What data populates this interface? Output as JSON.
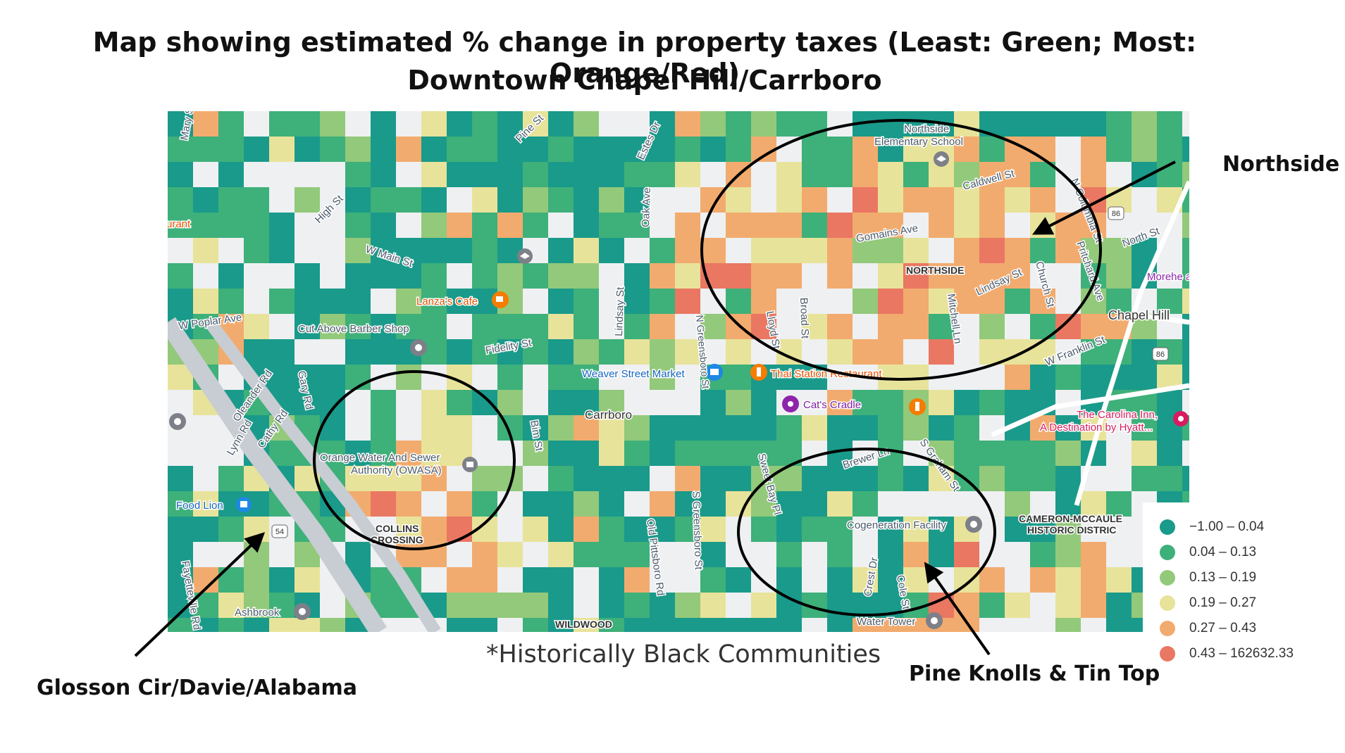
{
  "title": {
    "line1": "Map showing estimated % change in property taxes (Least: Green; Most: Orange/Red)",
    "line2": "Downtown Chapel Hill/Carrboro"
  },
  "map": {
    "labels": {
      "mary_st": "Mary St",
      "high_st": "High St",
      "pine_st": "Pine St",
      "estes_dr": "Estes Dr",
      "w_main_st": "W Main St",
      "oak_ave": "Oak Ave",
      "n_greensboro_st": "N Greensboro St",
      "lanzas_cafe": "Lanza's Cafe",
      "w_poplar_ave": "W Poplar Ave",
      "cut_above": "Cut Above Barber Shop",
      "fidelity_st": "Fidelity St",
      "lindsay_st": "Lindsay St",
      "weaver_street": "Weaver Street Market",
      "thai_station": "Thai Station Restaurant",
      "cats_cradle": "Cat's Cradle",
      "carrboro": "Carrboro",
      "owasa_1": "Orange Water And Sewer",
      "owasa_2": "Authority (OWASA)",
      "collins_1": "COLLINS",
      "collins_2": "CROSSING",
      "food_lion": "Food Lion",
      "ashbrook": "Ashbrook",
      "wildwood": "WILDWOOD",
      "northside_school_1": "Northside",
      "northside_school_2": "Elementary School",
      "northside": "NORTHSIDE",
      "gomains_ave": "Gomains Ave",
      "lindsay_st_2": "Lindsay St",
      "broad_st": "Broad St",
      "lloyd_st": "Lloyd St",
      "mitchell_ln": "Mitchell Ln",
      "caldwell_st": "Caldwell St",
      "church_st": "Church St",
      "n_columbia_st": "N Columbia St",
      "pritchard_ave": "Pritchard Ave",
      "north_st": "North St",
      "chapel_hill": "Chapel Hill",
      "w_franklin_st": "W Franklin St",
      "morehead": "Morehe and",
      "carolina_inn_1": "The Carolina Inn,",
      "carolina_inn_2": "A Destination by Hyatt...",
      "cameron_1": "CAMERON-MCCAULE",
      "cameron_2": "HISTORIC DISTRIC",
      "cogeneration": "Cogeneration Facility",
      "water_tower": "Water Tower",
      "crest_dr": "Crest Dr",
      "cole_st": "Cole St",
      "brewer_ln": "Brewer Ln",
      "s_graham_st": "S Graham St",
      "s_greensboro_st": "S Greensboro St",
      "old_pittsboro_rd": "Old Pittsboro Rd",
      "sweet_bay_pl": "Sweet Bay Pl",
      "bim_st": "Bim St",
      "oleander_rd": "Oleander Rd",
      "cathy_rd": "Cathy Rd",
      "lynn_rd": "Lynn Rd",
      "fayetteville_rd": "Fayetteville Rd",
      "gary_rd": "Gary Rd",
      "route_54": "54",
      "route_86": "86",
      "urant": "urant"
    },
    "colors": {
      "bin1": "#1a9a8a",
      "bin2": "#3eb07a",
      "bin3": "#93c97a",
      "bin4": "#e8e39a",
      "bin5": "#f2ab6e",
      "bin6": "#e97762"
    }
  },
  "annotations": {
    "northside": "Northside",
    "glosson": "Glosson Cir/Davie/Alabama",
    "pine_knolls": "Pine Knolls & Tin Top",
    "note": "*Historically Black Communities"
  },
  "legend": {
    "items": [
      {
        "label": "−1.00 – 0.04",
        "color": "#1a9a8a"
      },
      {
        "label": "0.04 – 0.13",
        "color": "#3eb07a"
      },
      {
        "label": "0.13 – 0.19",
        "color": "#93c97a"
      },
      {
        "label": "0.19 – 0.27",
        "color": "#e8e39a"
      },
      {
        "label": "0.27 – 0.43",
        "color": "#f2ab6e"
      },
      {
        "label": "0.43 – 162632.33",
        "color": "#e97762"
      }
    ]
  }
}
